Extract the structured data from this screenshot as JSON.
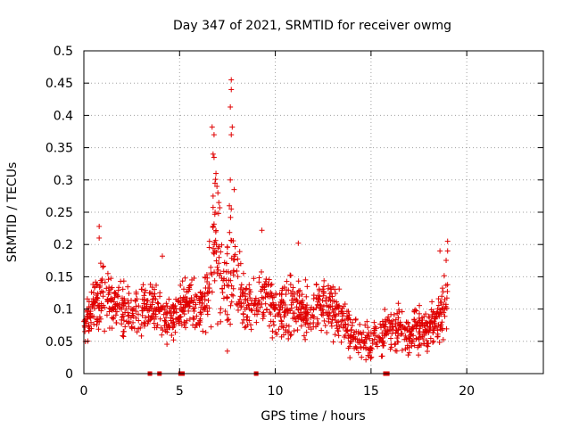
{
  "chart_data": {
    "type": "scatter",
    "title": "Day 347 of 2021, SRMTID for receiver owmg",
    "xlabel": "GPS time / hours",
    "ylabel": "SRMTID / TECUs",
    "xlim": [
      0,
      24
    ],
    "ylim": [
      0,
      0.5
    ],
    "xticks": [
      0,
      5,
      10,
      15,
      20
    ],
    "xtick_labels": [
      "0",
      "5",
      "10",
      "15",
      "20"
    ],
    "yticks": [
      0,
      0.05,
      0.1,
      0.15,
      0.2,
      0.25,
      0.3,
      0.35,
      0.4,
      0.45,
      0.5
    ],
    "ytick_labels": [
      "0",
      "0.05",
      "0.1",
      "0.15",
      "0.2",
      "0.25",
      "0.3",
      "0.35",
      "0.4",
      "0.45",
      "0.5"
    ],
    "grid": true,
    "marker": "plus",
    "color": "#e00000",
    "series": [
      {
        "name": "SRMTID",
        "trend": {
          "x": [
            0,
            0.5,
            1,
            1.5,
            2,
            2.5,
            3,
            3.5,
            4,
            4.5,
            5,
            5.5,
            6,
            6.5,
            6.8,
            7,
            7.3,
            7.6,
            7.9,
            8.2,
            8.5,
            9,
            9.5,
            10,
            10.5,
            11,
            11.5,
            12,
            12.5,
            13,
            13.5,
            14,
            14.5,
            15,
            15.5,
            16,
            16.5,
            17,
            17.5,
            18,
            18.5,
            19
          ],
          "y": [
            0.08,
            0.1,
            0.12,
            0.11,
            0.1,
            0.09,
            0.1,
            0.11,
            0.09,
            0.08,
            0.1,
            0.11,
            0.1,
            0.12,
            0.2,
            0.18,
            0.13,
            0.15,
            0.17,
            0.12,
            0.1,
            0.11,
            0.12,
            0.09,
            0.1,
            0.11,
            0.1,
            0.1,
            0.11,
            0.1,
            0.08,
            0.06,
            0.05,
            0.05,
            0.06,
            0.07,
            0.07,
            0.06,
            0.07,
            0.07,
            0.08,
            0.12
          ],
          "spread": [
            0.03,
            0.035,
            0.04,
            0.04,
            0.035,
            0.035,
            0.035,
            0.035,
            0.03,
            0.03,
            0.03,
            0.035,
            0.035,
            0.05,
            0.11,
            0.1,
            0.05,
            0.12,
            0.07,
            0.05,
            0.04,
            0.04,
            0.045,
            0.035,
            0.04,
            0.04,
            0.035,
            0.035,
            0.04,
            0.035,
            0.03,
            0.025,
            0.025,
            0.025,
            0.025,
            0.03,
            0.03,
            0.03,
            0.03,
            0.03,
            0.035,
            0.05
          ]
        },
        "highlights": [
          {
            "x": 7.7,
            "y": 0.455
          },
          {
            "x": 7.7,
            "y": 0.44
          },
          {
            "x": 7.65,
            "y": 0.413
          },
          {
            "x": 6.7,
            "y": 0.382
          },
          {
            "x": 7.75,
            "y": 0.382
          },
          {
            "x": 6.8,
            "y": 0.37
          },
          {
            "x": 7.7,
            "y": 0.37
          },
          {
            "x": 6.75,
            "y": 0.34
          },
          {
            "x": 6.8,
            "y": 0.335
          },
          {
            "x": 6.9,
            "y": 0.31
          },
          {
            "x": 7.65,
            "y": 0.3
          },
          {
            "x": 6.85,
            "y": 0.295
          },
          {
            "x": 6.95,
            "y": 0.29
          },
          {
            "x": 7.85,
            "y": 0.285
          },
          {
            "x": 7.0,
            "y": 0.28
          },
          {
            "x": 6.75,
            "y": 0.275
          },
          {
            "x": 7.05,
            "y": 0.265
          },
          {
            "x": 7.6,
            "y": 0.26
          },
          {
            "x": 7.7,
            "y": 0.255
          },
          {
            "x": 0.8,
            "y": 0.228
          },
          {
            "x": 9.3,
            "y": 0.222
          },
          {
            "x": 0.8,
            "y": 0.21
          },
          {
            "x": 19.0,
            "y": 0.205
          },
          {
            "x": 11.2,
            "y": 0.202
          },
          {
            "x": 19.0,
            "y": 0.19
          },
          {
            "x": 4.1,
            "y": 0.182
          },
          {
            "x": 18.6,
            "y": 0.19
          }
        ]
      }
    ],
    "gaps": {
      "x": [
        3.45,
        3.95,
        5.05,
        5.15,
        9.0,
        15.75,
        15.85
      ],
      "y": 0
    }
  }
}
